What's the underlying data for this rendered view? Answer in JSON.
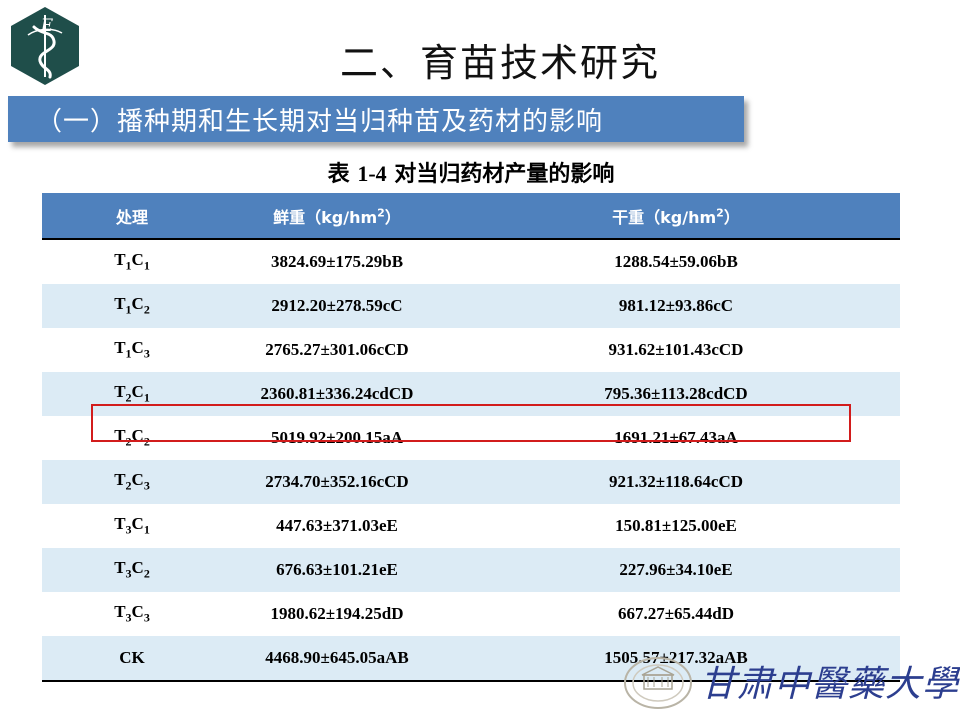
{
  "slide": {
    "title": "二、育苗技术研究",
    "subtitle": "（一）播种期和生长期对当归种苗及药材的影响"
  },
  "caption": {
    "prefix": "表",
    "number": "1-4",
    "text": "对当归药材产量的影响"
  },
  "table": {
    "headers": {
      "treatment": "处理",
      "fresh": "鲜重（kg/hm",
      "fresh_sup": "2",
      "fresh_end": "）",
      "dry": "干重（kg/hm",
      "dry_sup": "2",
      "dry_end": "）"
    },
    "rows": [
      {
        "treatment": [
          [
            "T",
            "1"
          ],
          [
            "C",
            "1"
          ]
        ],
        "fresh": "3824.69±175.29bB",
        "dry": "1288.54±59.06bB"
      },
      {
        "treatment": [
          [
            "T",
            "1"
          ],
          [
            "C",
            "2"
          ]
        ],
        "fresh": "2912.20±278.59cC",
        "dry": "981.12±93.86cC"
      },
      {
        "treatment": [
          [
            "T",
            "1"
          ],
          [
            "C",
            "3"
          ]
        ],
        "fresh": "2765.27±301.06cCD",
        "dry": "931.62±101.43cCD"
      },
      {
        "treatment": [
          [
            "T",
            "2"
          ],
          [
            "C",
            "1"
          ]
        ],
        "fresh": "2360.81±336.24cdCD",
        "dry": "795.36±113.28cdCD"
      },
      {
        "treatment": [
          [
            "T",
            "2"
          ],
          [
            "C",
            "2"
          ]
        ],
        "fresh": "5019.92±200.15aA",
        "dry": "1691.21±67.43aA"
      },
      {
        "treatment": [
          [
            "T",
            "2"
          ],
          [
            "C",
            "3"
          ]
        ],
        "fresh": "2734.70±352.16cCD",
        "dry": "921.32±118.64cCD"
      },
      {
        "treatment": [
          [
            "T",
            "3"
          ],
          [
            "C",
            "1"
          ]
        ],
        "fresh": "447.63±371.03eE",
        "dry": "150.81±125.00eE"
      },
      {
        "treatment": [
          [
            "T",
            "3"
          ],
          [
            "C",
            "2"
          ]
        ],
        "fresh": "676.63±101.21eE",
        "dry": "227.96±34.10eE"
      },
      {
        "treatment": [
          [
            "T",
            "3"
          ],
          [
            "C",
            "3"
          ]
        ],
        "fresh": "1980.62±194.25dD",
        "dry": "667.27±65.44dD"
      },
      {
        "treatment": [
          [
            "CK",
            ""
          ]
        ],
        "fresh": "4468.90±645.05aAB",
        "dry": "1505.57±217.32aAB"
      }
    ],
    "highlighted_row": 4
  },
  "branding": {
    "logo_icon": "caduceus-snake-logo-icon",
    "logo_letter": "E",
    "university_name": "甘肃中醫藥大學",
    "seal_icon": "university-seal-icon",
    "colors": {
      "accent": "#4f81bd",
      "band": "#dcebf5",
      "logo_bg": "#1f4e4a",
      "highlight": "#d21c1c"
    }
  }
}
